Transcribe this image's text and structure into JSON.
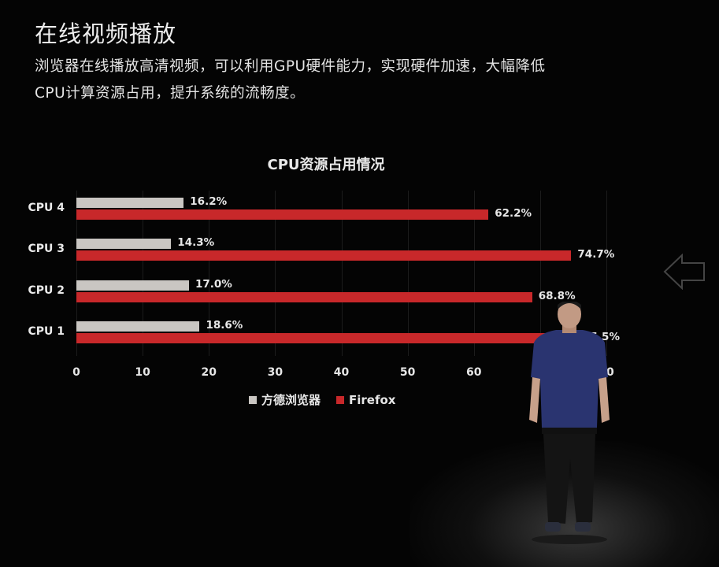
{
  "slide": {
    "title": "在线视频播放",
    "description_line1": "浏览器在线播放高清视频，可以利用GPU硬件能力，实现硬件加速，大幅降低",
    "description_line2": "CPU计算资源占用，提升系统的流畅度。"
  },
  "chart_data": {
    "type": "bar",
    "orientation": "horizontal",
    "title": "CPU资源占用情况",
    "xlabel": "",
    "ylabel": "",
    "categories": [
      "CPU 4",
      "CPU 3",
      "CPU 2",
      "CPU 1"
    ],
    "series": [
      {
        "name": "方德浏览器",
        "color": "#c9c6c2",
        "values": [
          16.2,
          14.3,
          17.0,
          18.6
        ],
        "labels": [
          "16.2%",
          "14.3%",
          "17.0%",
          "18.6%"
        ]
      },
      {
        "name": "Firefox",
        "color": "#c8282a",
        "values": [
          62.2,
          74.7,
          68.8,
          75.5
        ],
        "labels": [
          "62.2%",
          "74.7%",
          "68.8%",
          "75.5%"
        ]
      }
    ],
    "xlim": [
      0,
      80
    ],
    "xticks": [
      "0",
      "10",
      "20",
      "30",
      "40",
      "50",
      "60",
      "70",
      "80"
    ],
    "grid": true,
    "legend_position": "bottom"
  },
  "icons": {
    "nav_arrow": "left-arrow-outline-icon"
  }
}
